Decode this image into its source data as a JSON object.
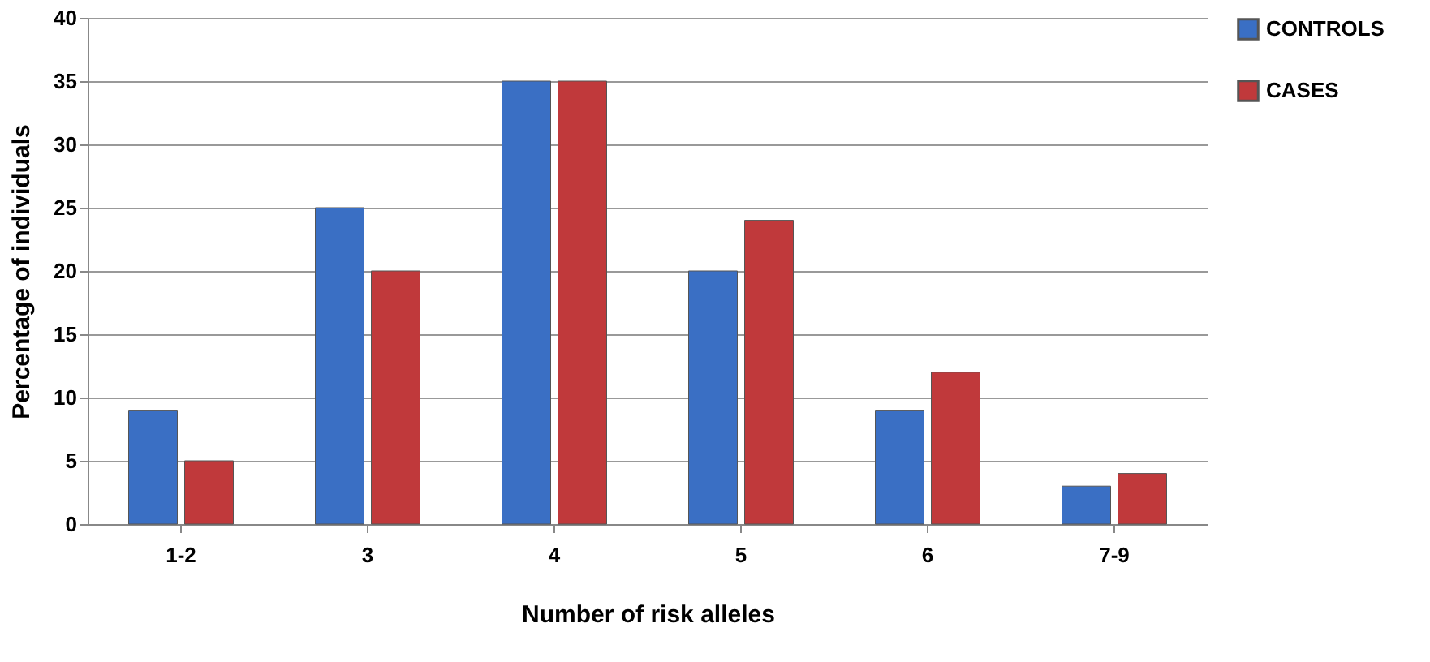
{
  "chart_data": {
    "type": "bar",
    "xlabel": "Number of risk alleles",
    "ylabel": "Percentage of individuals",
    "categories": [
      "1-2",
      "3",
      "4",
      "5",
      "6",
      "7-9"
    ],
    "series": [
      {
        "name": "CONTROLS",
        "color": "#3a6fc4",
        "values": [
          9,
          25,
          35,
          20,
          9,
          3
        ]
      },
      {
        "name": "CASES",
        "color": "#c0393b",
        "values": [
          5,
          20,
          35,
          24,
          12,
          4
        ]
      }
    ],
    "ylim": [
      0,
      40
    ],
    "yticks": [
      0,
      5,
      10,
      15,
      20,
      25,
      30,
      35,
      40
    ],
    "grid": "y",
    "legend": "right"
  }
}
